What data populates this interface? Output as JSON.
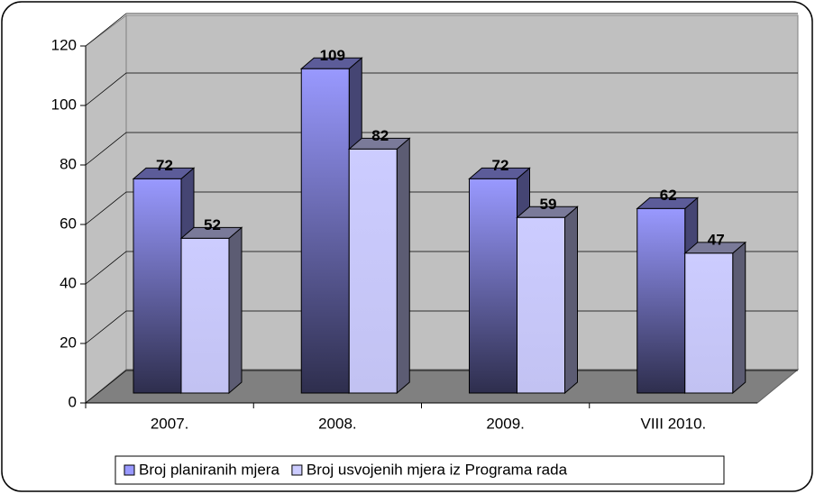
{
  "chart_data": {
    "type": "bar3d",
    "categories": [
      "2007.",
      "2008.",
      "2009.",
      "VIII 2010."
    ],
    "series": [
      {
        "name": "Broj planiranih mjera",
        "color": "#9999ff",
        "values": [
          72,
          109,
          72,
          62
        ]
      },
      {
        "name": "Broj usvojenih mjera iz Programa rada",
        "color": "#ccccff",
        "values": [
          52,
          82,
          59,
          47
        ]
      }
    ],
    "ylim": [
      0,
      120
    ],
    "yticks": [
      0,
      20,
      40,
      60,
      80,
      100,
      120
    ],
    "grid": true,
    "legend": "bottom"
  }
}
